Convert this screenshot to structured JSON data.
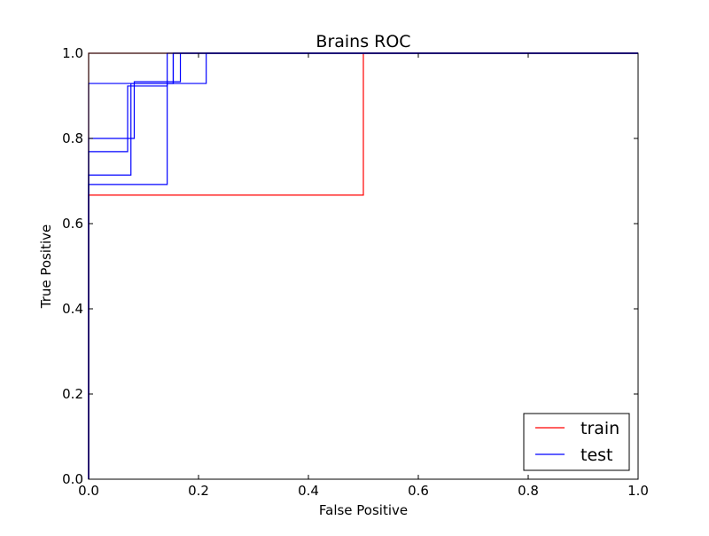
{
  "chart_data": {
    "type": "line",
    "title": "Brains ROC",
    "xlabel": "False Positive",
    "ylabel": "True Positive",
    "xlim": [
      0.0,
      1.0
    ],
    "ylim": [
      0.0,
      1.0
    ],
    "xticks": [
      "0.0",
      "0.2",
      "0.4",
      "0.6",
      "0.8",
      "1.0"
    ],
    "yticks": [
      "0.0",
      "0.2",
      "0.4",
      "0.6",
      "0.8",
      "1.0"
    ],
    "grid": false,
    "legend_position": "lower-right",
    "series": [
      {
        "name": "train",
        "color": "#ff0000",
        "curves": [
          {
            "x": [
              0.0,
              0.0,
              0.5,
              0.5,
              1.0
            ],
            "y": [
              0.0,
              0.667,
              0.667,
              1.0,
              1.0
            ]
          },
          {
            "x": [
              0.0,
              0.0,
              1.0
            ],
            "y": [
              0.0,
              1.0,
              1.0
            ]
          }
        ]
      },
      {
        "name": "test",
        "color": "#0000ff",
        "curves": [
          {
            "x": [
              0.0,
              0.0,
              0.143,
              0.143,
              1.0
            ],
            "y": [
              0.0,
              0.692,
              0.692,
              1.0,
              1.0
            ]
          },
          {
            "x": [
              0.0,
              0.0,
              0.077,
              0.077,
              0.154,
              0.154,
              1.0
            ],
            "y": [
              0.0,
              0.714,
              0.714,
              0.929,
              0.929,
              1.0,
              1.0
            ]
          },
          {
            "x": [
              0.0,
              0.0,
              0.071,
              0.071,
              0.143,
              0.143,
              0.214,
              0.214,
              1.0
            ],
            "y": [
              0.0,
              0.769,
              0.769,
              0.923,
              0.923,
              0.929,
              0.929,
              1.0,
              1.0
            ]
          },
          {
            "x": [
              0.0,
              0.0,
              0.083,
              0.083,
              0.143,
              0.143,
              0.167,
              0.167,
              1.0
            ],
            "y": [
              0.0,
              0.8,
              0.8,
              0.933,
              0.933,
              0.933,
              0.933,
              1.0,
              1.0
            ]
          },
          {
            "x": [
              0.0,
              0.0,
              0.154,
              0.154,
              1.0
            ],
            "y": [
              0.0,
              0.929,
              0.929,
              1.0,
              1.0
            ]
          }
        ]
      }
    ]
  }
}
